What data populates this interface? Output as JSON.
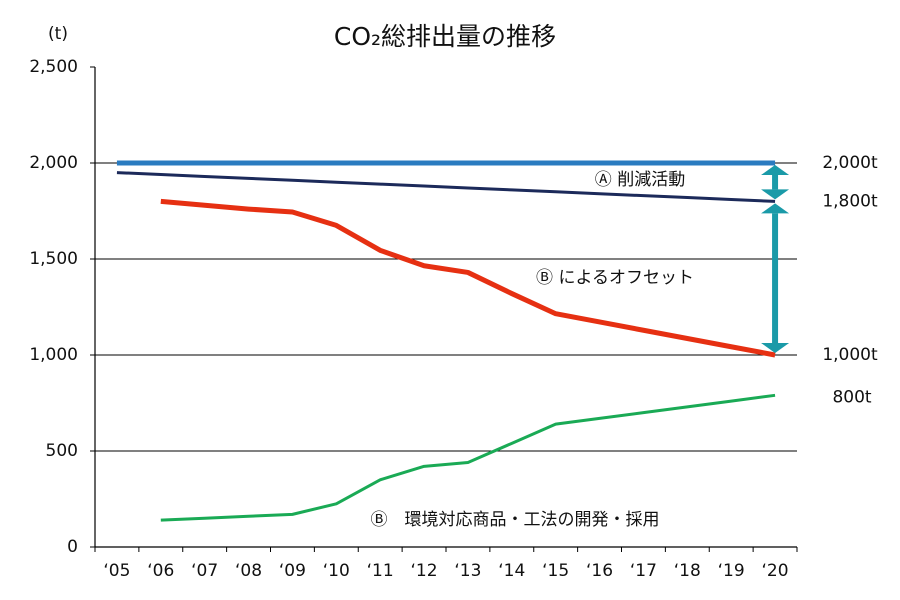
{
  "chart_data": {
    "type": "line",
    "title": "CO₂総排出量の推移",
    "y_label": "(t)",
    "categories": [
      "‘05",
      "‘06",
      "‘07",
      "‘08",
      "‘09",
      "‘10",
      "‘11",
      "‘12",
      "‘13",
      "‘14",
      "‘15",
      "‘16",
      "‘17",
      "‘18",
      "‘19",
      "‘20"
    ],
    "series": [
      {
        "color": "#2a7bc0",
        "values": [
          2000,
          2000,
          2000,
          2000,
          2000,
          2000,
          2000,
          2000,
          2000,
          2000,
          2000,
          2000,
          2000,
          2000,
          2000,
          2000
        ]
      },
      {
        "color": "#1c2a5a",
        "values": [
          1950,
          1940,
          1930,
          1920,
          1910,
          1900,
          1890,
          1880,
          1870,
          1860,
          1850,
          1840,
          1830,
          1820,
          1810,
          1800
        ]
      },
      {
        "color": "#e63012",
        "values": [
          null,
          1800,
          1780,
          1760,
          1745,
          1675,
          1545,
          1465,
          1430,
          1320,
          1215,
          1172,
          1129,
          1086,
          1043,
          1000
        ]
      },
      {
        "color": "#1aaa55",
        "values": [
          null,
          140,
          150,
          160,
          170,
          225,
          350,
          420,
          440,
          540,
          640,
          670,
          700,
          730,
          760,
          790
        ]
      }
    ],
    "ylim": [
      0,
      2500
    ],
    "yticks": [
      0,
      500,
      {
        "value": 1000,
        "label": "1,000"
      },
      {
        "value": 1500,
        "label": "1,500"
      },
      {
        "value": 2000,
        "label": "2,000"
      },
      {
        "value": 2500,
        "label": "2,500"
      }
    ],
    "grid": true,
    "annotations": [
      "2,000t",
      "1,800t",
      "1,000t",
      "800t",
      "Ⓐ 削減活動",
      "Ⓑ によるオフセット",
      "Ⓑ　環境対応商品・工法の開発・採用"
    ],
    "arrow_color": "#1a9aa8"
  }
}
